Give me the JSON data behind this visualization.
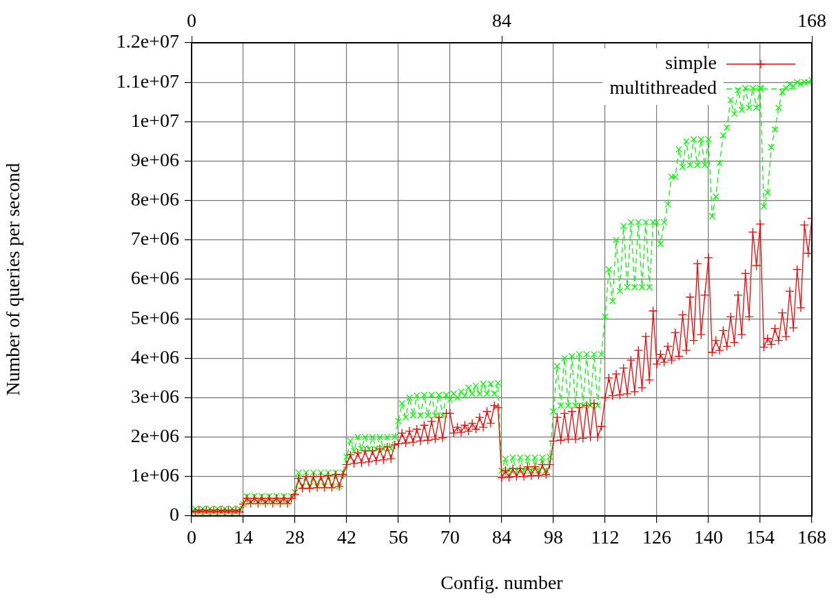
{
  "chart_data": {
    "type": "line",
    "xlabel": "Config. number",
    "ylabel": "Number of queries per second",
    "x": [
      0,
      1,
      2,
      3,
      4,
      5,
      6,
      7,
      8,
      9,
      10,
      11,
      12,
      13,
      14,
      15,
      16,
      17,
      18,
      19,
      20,
      21,
      22,
      23,
      24,
      25,
      26,
      27,
      28,
      29,
      30,
      31,
      32,
      33,
      34,
      35,
      36,
      37,
      38,
      39,
      40,
      41,
      42,
      43,
      44,
      45,
      46,
      47,
      48,
      49,
      50,
      51,
      52,
      53,
      54,
      55,
      56,
      57,
      58,
      59,
      60,
      61,
      62,
      63,
      64,
      65,
      66,
      67,
      68,
      69,
      70,
      71,
      72,
      73,
      74,
      75,
      76,
      77,
      78,
      79,
      80,
      81,
      82,
      83,
      84,
      85,
      86,
      87,
      88,
      89,
      90,
      91,
      92,
      93,
      94,
      95,
      96,
      97,
      98,
      99,
      100,
      101,
      102,
      103,
      104,
      105,
      106,
      107,
      108,
      109,
      110,
      111,
      112,
      113,
      114,
      115,
      116,
      117,
      118,
      119,
      120,
      121,
      122,
      123,
      124,
      125,
      126,
      127,
      128,
      129,
      130,
      131,
      132,
      133,
      134,
      135,
      136,
      137,
      138,
      139,
      140,
      141,
      142,
      143,
      144,
      145,
      146,
      147,
      148,
      149,
      150,
      151,
      152,
      153,
      154,
      155,
      156,
      157,
      158,
      159,
      160,
      161,
      162,
      163,
      164,
      165,
      166,
      167,
      168
    ],
    "series": [
      {
        "name": "simple",
        "color": "#ff0000",
        "marker": "cross",
        "line_style": "solid",
        "values": [
          120000.0,
          100000.0,
          150000.0,
          100000.0,
          150000.0,
          100000.0,
          150000.0,
          100000.0,
          150000.0,
          100000.0,
          150000.0,
          100000.0,
          150000.0,
          100000.0,
          300000.0,
          450000.0,
          320000.0,
          450000.0,
          320000.0,
          450000.0,
          320000.0,
          450000.0,
          320000.0,
          450000.0,
          320000.0,
          450000.0,
          320000.0,
          450000.0,
          550000.0,
          950000.0,
          700000.0,
          1000000.0,
          700000.0,
          1000000.0,
          720000.0,
          1000000.0,
          720000.0,
          1020000.0,
          720000.0,
          1050000.0,
          750000.0,
          1050000.0,
          1300000.0,
          1550000.0,
          1330000.0,
          1600000.0,
          1350000.0,
          1650000.0,
          1370000.0,
          1650000.0,
          1400000.0,
          1700000.0,
          1420000.0,
          1750000.0,
          1450000.0,
          1800000.0,
          1830000.0,
          2100000.0,
          1850000.0,
          2150000.0,
          1870000.0,
          2200000.0,
          1900000.0,
          2300000.0,
          1920000.0,
          2400000.0,
          1950000.0,
          2500000.0,
          1980000.0,
          2600000.0,
          2600000.0,
          2100000.0,
          2250000.0,
          2120000.0,
          2300000.0,
          2150000.0,
          2350000.0,
          2200000.0,
          2500000.0,
          2250000.0,
          2650000.0,
          2350000.0,
          2800000.0,
          2750000.0,
          970000.0,
          1150000.0,
          980000.0,
          1200000.0,
          1000000.0,
          1200000.0,
          1000000.0,
          1250000.0,
          1020000.0,
          1250000.0,
          1030000.0,
          1300000.0,
          1050000.0,
          1300000.0,
          1900000.0,
          2500000.0,
          1920000.0,
          2600000.0,
          1950000.0,
          2650000.0,
          1950000.0,
          2750000.0,
          1970000.0,
          2800000.0,
          2000000.0,
          2850000.0,
          2000000.0,
          2270000.0,
          3000000.0,
          3500000.0,
          3050000.0,
          3600000.0,
          3070000.0,
          3750000.0,
          3100000.0,
          3950000.0,
          3150000.0,
          4200000.0,
          3250000.0,
          4550000.0,
          3450000.0,
          5200000.0,
          3850000.0,
          4100000.0,
          3900000.0,
          4300000.0,
          3950000.0,
          4650000.0,
          4050000.0,
          5100000.0,
          4200000.0,
          5550000.0,
          4450000.0,
          6400000.0,
          4600000.0,
          5600000.0,
          6550000.0,
          4150000.0,
          4450000.0,
          4200000.0,
          4700000.0,
          4300000.0,
          5050000.0,
          4400000.0,
          5600000.0,
          4600000.0,
          6150000.0,
          5050000.0,
          7200000.0,
          6350000.0,
          7400000.0,
          4280000.0,
          4500000.0,
          4350000.0,
          4750000.0,
          4450000.0,
          5150000.0,
          4550000.0,
          5700000.0,
          4770000.0,
          6250000.0,
          5280000.0,
          7380000.0,
          6660000.0,
          7550000.0
        ]
      },
      {
        "name": "multithreaded",
        "color": "#00ff00",
        "marker": "cross",
        "line_style": "dashed",
        "values": [
          120000.0,
          180000.0,
          100000.0,
          180000.0,
          100000.0,
          180000.0,
          100000.0,
          180000.0,
          100000.0,
          180000.0,
          100000.0,
          180000.0,
          100000.0,
          180000.0,
          300000.0,
          500000.0,
          350000.0,
          500000.0,
          350000.0,
          500000.0,
          350000.0,
          500000.0,
          350000.0,
          500000.0,
          350000.0,
          500000.0,
          350000.0,
          500000.0,
          600000.0,
          1100000.0,
          750000.0,
          1100000.0,
          750000.0,
          1100000.0,
          750000.0,
          1100000.0,
          750000.0,
          1100000.0,
          750000.0,
          1100000.0,
          750000.0,
          1100000.0,
          1500000.0,
          1900000.0,
          1650000.0,
          2000000.0,
          1700000.0,
          2000000.0,
          1700000.0,
          2000000.0,
          1700000.0,
          2000000.0,
          1700000.0,
          2000000.0,
          1700000.0,
          2000000.0,
          2400000.0,
          2850000.0,
          2500000.0,
          3000000.0,
          2550000.0,
          3050000.0,
          2550000.0,
          3070000.0,
          2550000.0,
          3070000.0,
          2550000.0,
          3070000.0,
          2550000.0,
          3070000.0,
          2950000.0,
          3100000.0,
          3000000.0,
          3150000.0,
          3050000.0,
          3250000.0,
          3100000.0,
          3300000.0,
          3100000.0,
          3350000.0,
          3100000.0,
          3350000.0,
          3100000.0,
          3370000.0,
          1150000.0,
          1450000.0,
          1150000.0,
          1480000.0,
          1150000.0,
          1480000.0,
          1150000.0,
          1480000.0,
          1150000.0,
          1480000.0,
          1150000.0,
          1480000.0,
          1150000.0,
          1500000.0,
          2650000.0,
          3800000.0,
          2800000.0,
          4000000.0,
          2800000.0,
          4050000.0,
          2800000.0,
          4100000.0,
          2800000.0,
          4100000.0,
          2800000.0,
          4100000.0,
          2800000.0,
          4100000.0,
          5050000.0,
          6250000.0,
          5450000.0,
          7000000.0,
          5700000.0,
          7350000.0,
          5800000.0,
          7450000.0,
          5800000.0,
          7450000.0,
          5800000.0,
          7450000.0,
          5800000.0,
          7450000.0,
          7450000.0,
          6900000.0,
          7450000.0,
          7900000.0,
          8600000.0,
          8600000.0,
          9300000.0,
          8850000.0,
          9500000.0,
          8900000.0,
          9550000.0,
          8900000.0,
          9550000.0,
          8900000.0,
          9550000.0,
          7600000.0,
          8100000.0,
          8950000.0,
          9650000.0,
          9850000.0,
          10550000.0,
          10200000.0,
          10800000.0,
          10300000.0,
          10850000.0,
          10350000.0,
          10850000.0,
          10350000.0,
          10850000.0,
          7850000.0,
          8200000.0,
          9350000.0,
          9800000.0,
          10350000.0,
          10750000.0,
          10850000.0,
          10950000.0,
          10900000.0,
          11000000.0,
          10950000.0,
          11000000.0,
          11000000.0,
          11050000.0
        ]
      }
    ],
    "xlim": [
      0,
      168
    ],
    "xticks": [
      0,
      14,
      28,
      42,
      56,
      70,
      84,
      98,
      112,
      126,
      140,
      154,
      168
    ],
    "x2lim": [
      0,
      168
    ],
    "x2ticks": [
      0,
      84,
      168
    ],
    "ylim": [
      0,
      12000000.0
    ],
    "yticks": [
      0,
      {
        "value": 1000000.0,
        "label": "1e+06"
      },
      {
        "value": 2000000.0,
        "label": "2e+06"
      },
      {
        "value": 3000000.0,
        "label": "3e+06"
      },
      {
        "value": 4000000.0,
        "label": "4e+06"
      },
      {
        "value": 5000000.0,
        "label": "5e+06"
      },
      {
        "value": 6000000.0,
        "label": "6e+06"
      },
      {
        "value": 7000000.0,
        "label": "7e+06"
      },
      {
        "value": 8000000.0,
        "label": "8e+06"
      },
      {
        "value": 9000000.0,
        "label": "9e+06"
      },
      {
        "value": 10000000.0,
        "label": "1e+07"
      },
      {
        "value": 11000000.0,
        "label": "1.1e+07"
      },
      {
        "value": 12000000.0,
        "label": "1.2e+07"
      }
    ],
    "grid": true,
    "legend": "top right"
  }
}
